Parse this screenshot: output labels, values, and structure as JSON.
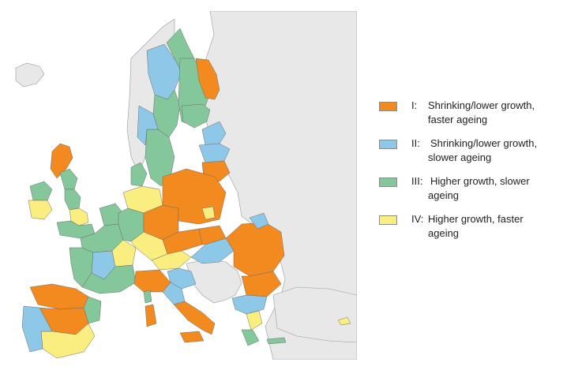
{
  "colors": {
    "orange": "#f28a1f",
    "blue": "#8dc8e8",
    "green": "#84c79a",
    "yellow": "#faee80",
    "non_eu_land": "#e8e8e8",
    "sea": "#ffffff",
    "border": "#6d6d6d"
  },
  "legend": {
    "items": [
      {
        "code": "I:",
        "line1": "Shrinking/lower growth,",
        "line2": "faster ageing",
        "color": "#f28a1f"
      },
      {
        "code": "II:",
        "line1": "Shrinking/lower growth,",
        "line2": "slower ageing",
        "color": "#8dc8e8"
      },
      {
        "code": "III:",
        "line1": "Higher growth, slower",
        "line2": "ageing",
        "color": "#84c79a"
      },
      {
        "code": "IV:",
        "line1": "Higher growth, faster",
        "line2": "ageing",
        "color": "#faee80"
      }
    ]
  }
}
